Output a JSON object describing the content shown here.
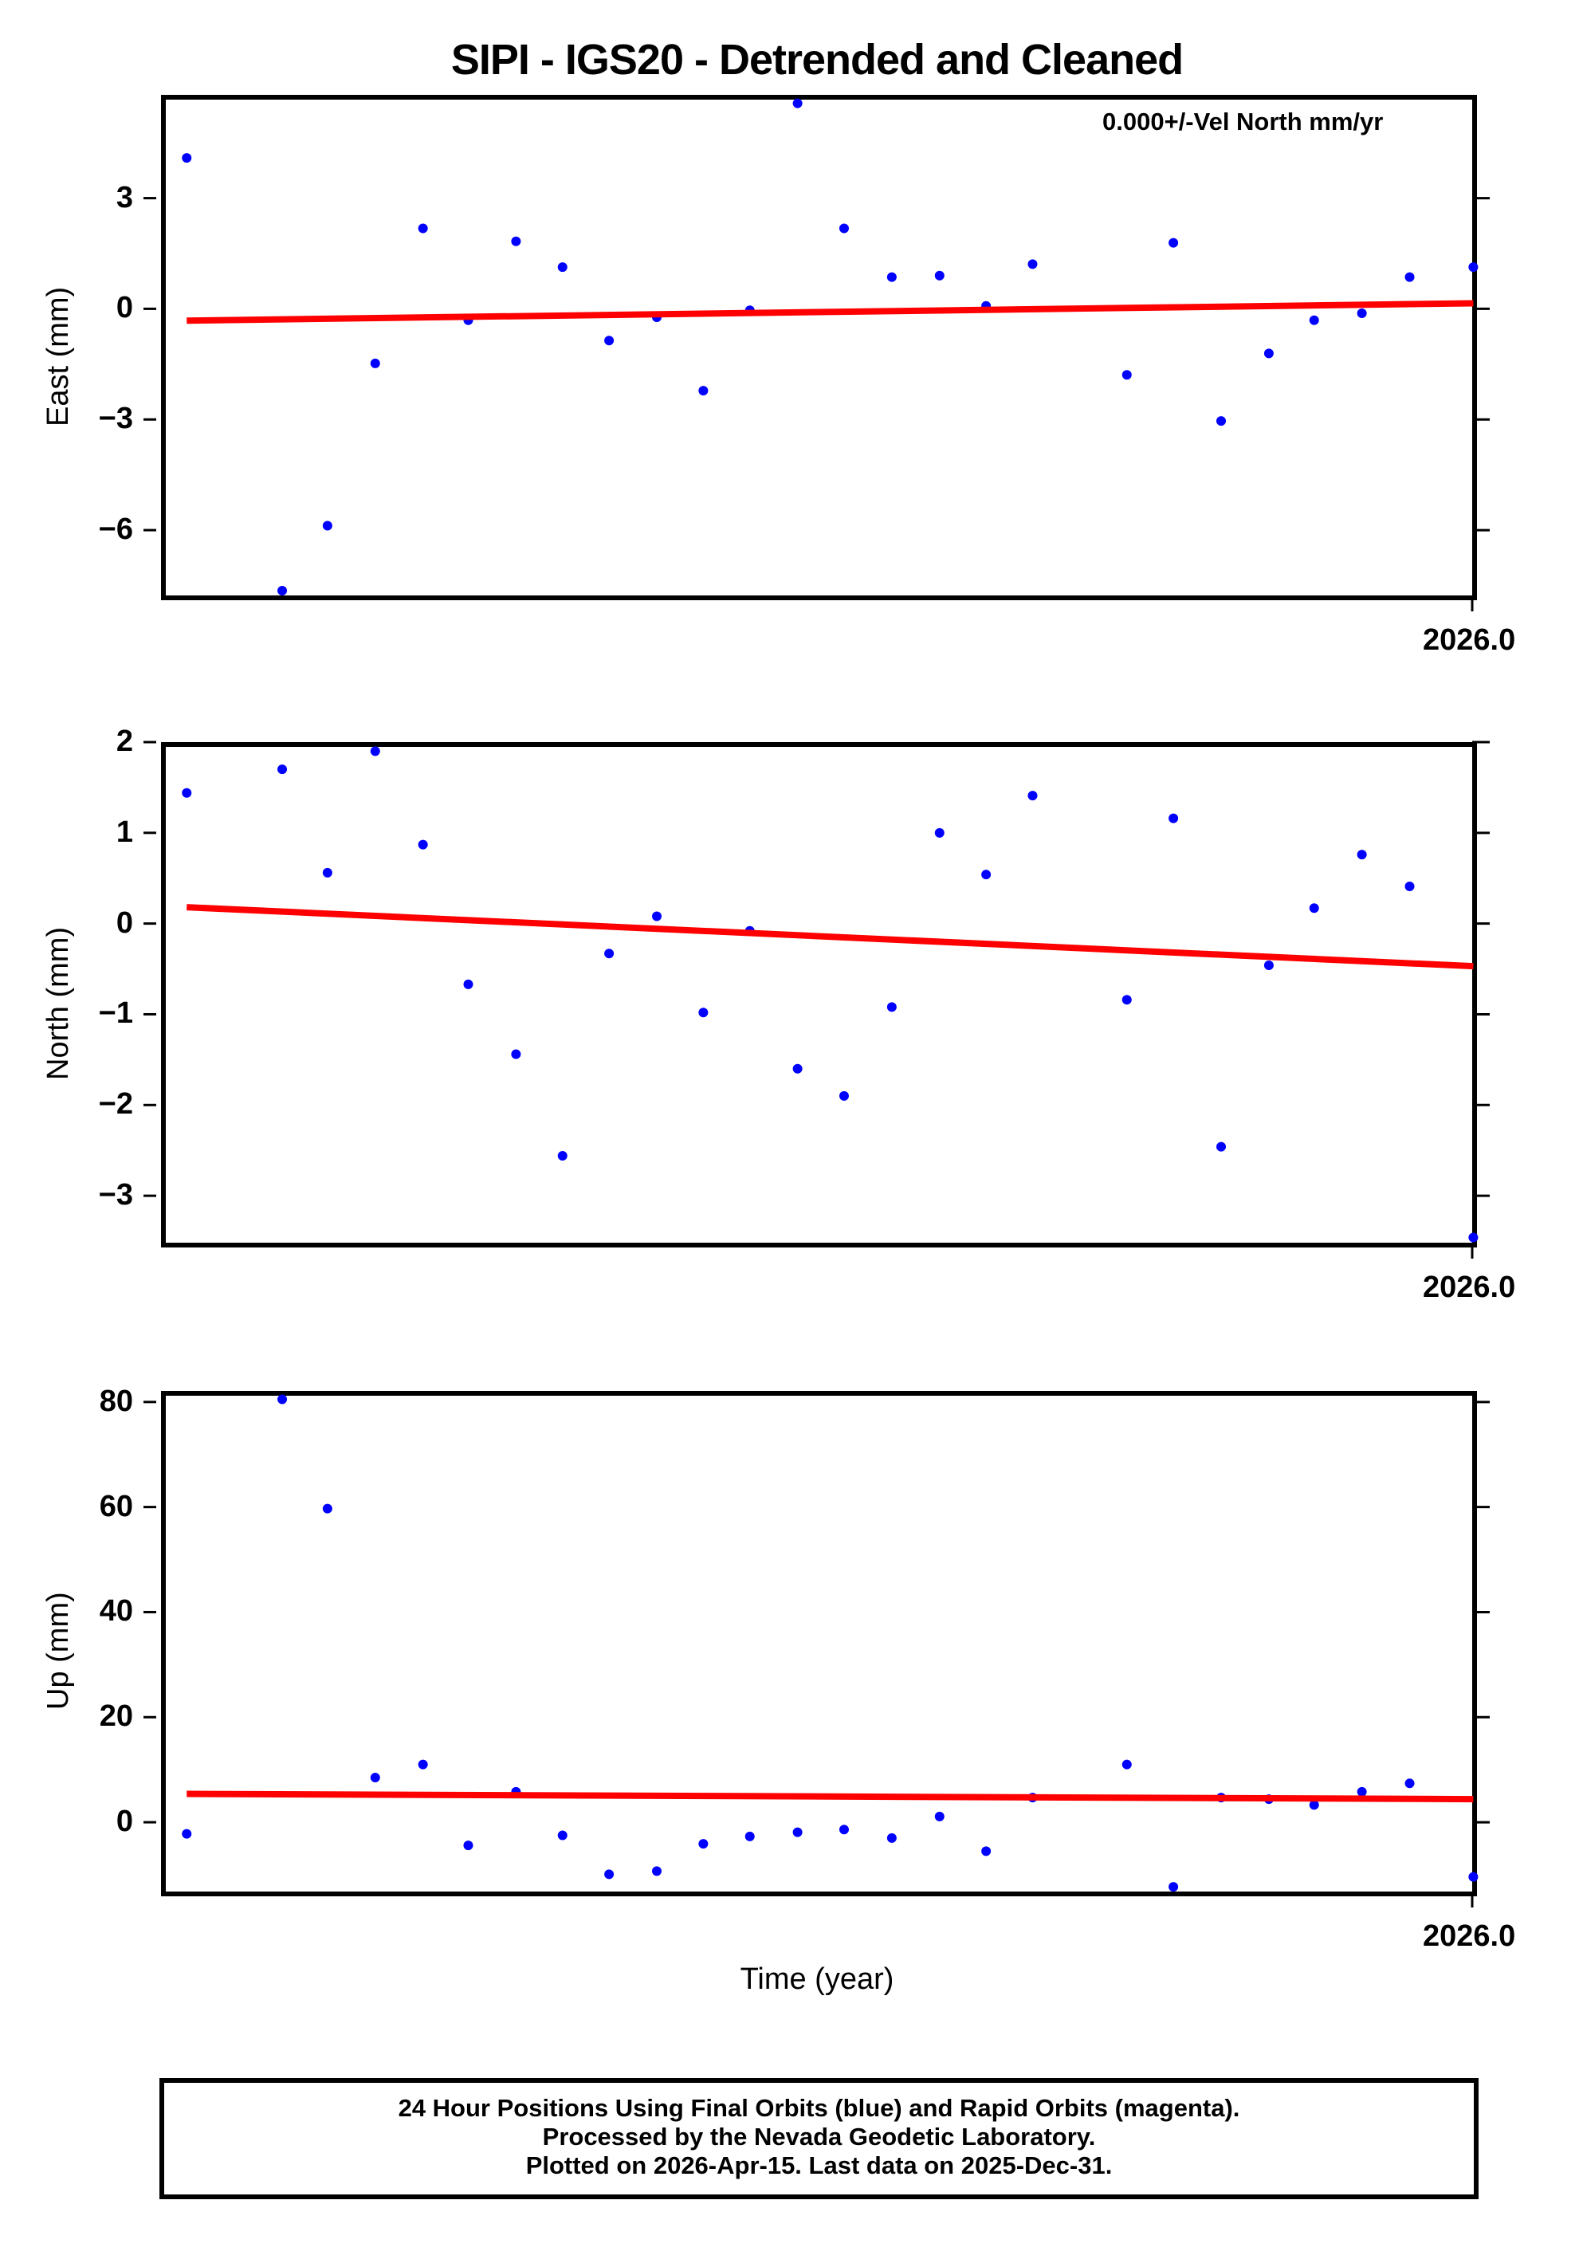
{
  "title": "SIPI - IGS20 - Detrended and Cleaned",
  "annotation": "0.000+/-Vel North mm/yr",
  "x_axis": {
    "label": "Time (year)",
    "tick_label": "2026.0"
  },
  "footer": {
    "line1": "24 Hour Positions Using Final Orbits (blue) and Rapid Orbits (magenta).",
    "line2": "Processed by the Nevada Geodetic Laboratory.",
    "line3": "Plotted on 2026-Apr-15. Last data on 2025-Dec-31."
  },
  "colors": {
    "points": "#0000ff",
    "trend": "#ff0000",
    "axes": "#000000"
  },
  "panels": [
    {
      "ylabel": "East (mm)",
      "ticks": [
        "3",
        "0",
        "−3",
        "−6"
      ]
    },
    {
      "ylabel": "North (mm)",
      "ticks": [
        "2",
        "1",
        "0",
        "−1",
        "−2",
        "−3"
      ]
    },
    {
      "ylabel": "Up (mm)",
      "ticks": [
        "80",
        "60",
        "40",
        "20",
        "0"
      ]
    }
  ],
  "chart_data": [
    {
      "type": "scatter",
      "title": "SIPI - IGS20 - Detrended and Cleaned",
      "ylabel": "East (mm)",
      "xlabel": "",
      "xlim": [
        2024.925,
        2026.0
      ],
      "ylim": [
        -7.9,
        5.8
      ],
      "yticks": [
        3,
        0,
        -3,
        -6
      ],
      "x": [
        2024.946,
        2025.024,
        2025.061,
        2025.1,
        2025.139,
        2025.176,
        2025.215,
        2025.253,
        2025.291,
        2025.33,
        2025.368,
        2025.406,
        2025.445,
        2025.483,
        2025.522,
        2025.561,
        2025.599,
        2025.637,
        2025.714,
        2025.752,
        2025.791,
        2025.83,
        2025.867,
        2025.906,
        2025.945,
        2025.997
      ],
      "series": [
        {
          "name": "Final Orbits",
          "color": "#0000ff",
          "values": [
            4.09,
            -7.64,
            -5.88,
            -1.48,
            2.18,
            -0.31,
            1.83,
            1.13,
            -0.86,
            -0.23,
            -2.22,
            -0.04,
            5.57,
            2.18,
            0.86,
            0.9,
            0.08,
            1.21,
            -1.79,
            1.79,
            -3.04,
            -1.21,
            -0.31,
            -0.12,
            0.86,
            1.13
          ]
        },
        {
          "name": "Trend",
          "color": "#ff0000",
          "type": "line",
          "x": [
            2024.946,
            2025.997
          ],
          "values": [
            -0.32,
            0.15
          ]
        }
      ],
      "annotations": [
        "0.000+/-Vel North mm/yr"
      ],
      "xtick_labels": [
        "2026.0"
      ],
      "grid": false
    },
    {
      "type": "scatter",
      "ylabel": "North (mm)",
      "xlabel": "",
      "xlim": [
        2024.925,
        2026.0
      ],
      "ylim": [
        -3.57,
        2.0
      ],
      "yticks": [
        2,
        1,
        0,
        -1,
        -2,
        -3
      ],
      "x": [
        2024.946,
        2025.024,
        2025.061,
        2025.1,
        2025.139,
        2025.176,
        2025.215,
        2025.253,
        2025.291,
        2025.33,
        2025.368,
        2025.406,
        2025.445,
        2025.483,
        2025.522,
        2025.561,
        2025.599,
        2025.637,
        2025.714,
        2025.752,
        2025.791,
        2025.83,
        2025.867,
        2025.906,
        2025.945,
        2025.997
      ],
      "series": [
        {
          "name": "Final Orbits",
          "color": "#0000ff",
          "values": [
            1.44,
            1.7,
            0.56,
            1.9,
            0.87,
            -0.67,
            -1.44,
            -2.56,
            -0.33,
            0.08,
            -0.98,
            -0.08,
            -1.6,
            -1.9,
            -0.92,
            1.0,
            0.54,
            1.41,
            -0.84,
            1.16,
            -2.46,
            -0.46,
            0.17,
            0.76,
            0.41,
            -3.46
          ]
        },
        {
          "name": "Trend",
          "color": "#ff0000",
          "type": "line",
          "x": [
            2024.946,
            2025.997
          ],
          "values": [
            0.18,
            -0.47
          ]
        }
      ],
      "xtick_labels": [
        "2026.0"
      ],
      "grid": false
    },
    {
      "type": "scatter",
      "ylabel": "Up (mm)",
      "xlabel": "Time (year)",
      "xlim": [
        2024.925,
        2026.0
      ],
      "ylim": [
        -14.1,
        82.1
      ],
      "yticks": [
        80,
        60,
        40,
        20,
        0
      ],
      "x": [
        2024.946,
        2025.024,
        2025.061,
        2025.1,
        2025.139,
        2025.176,
        2025.215,
        2025.253,
        2025.291,
        2025.33,
        2025.368,
        2025.406,
        2025.445,
        2025.483,
        2025.522,
        2025.561,
        2025.599,
        2025.637,
        2025.714,
        2025.752,
        2025.791,
        2025.83,
        2025.867,
        2025.906,
        2025.945,
        2025.997
      ],
      "series": [
        {
          "name": "Final Orbits",
          "color": "#0000ff",
          "values": [
            -2.2,
            80.5,
            59.7,
            8.5,
            11.0,
            -4.4,
            5.8,
            -2.5,
            -9.9,
            -9.3,
            -4.1,
            -2.7,
            -1.9,
            -1.4,
            -3.0,
            1.1,
            -5.5,
            4.7,
            11.0,
            -12.3,
            4.7,
            4.4,
            3.3,
            5.8,
            7.4,
            -10.4
          ]
        },
        {
          "name": "Trend",
          "color": "#ff0000",
          "type": "line",
          "x": [
            2024.946,
            2025.997
          ],
          "values": [
            5.4,
            4.4
          ]
        }
      ],
      "xtick_labels": [
        "2026.0"
      ],
      "grid": false
    }
  ]
}
